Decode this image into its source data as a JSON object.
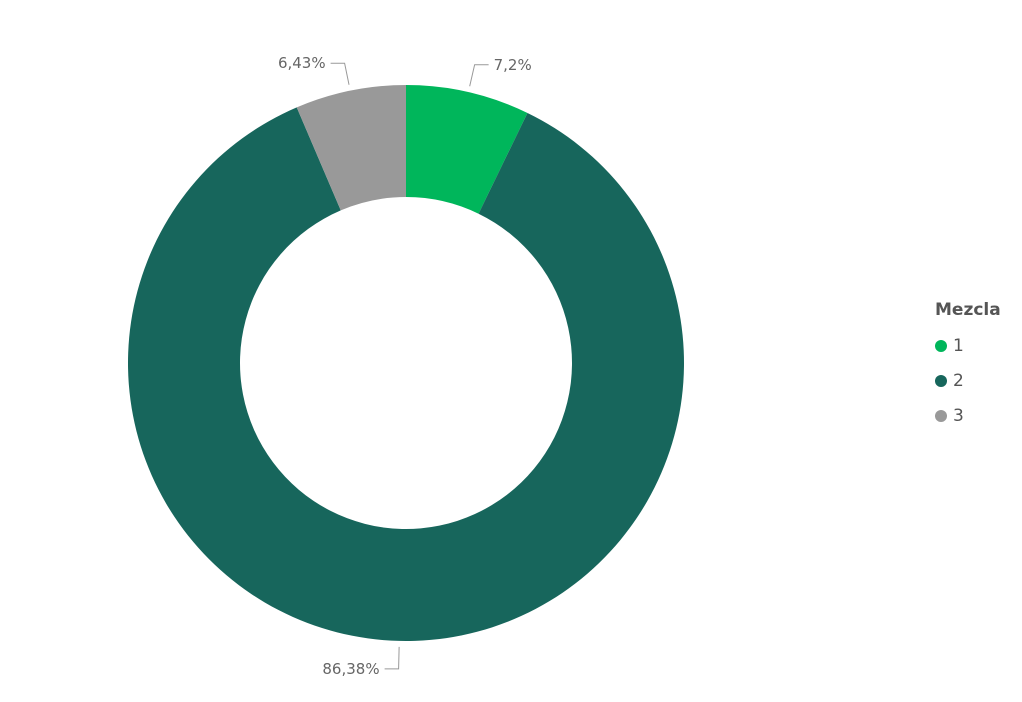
{
  "chart_data": {
    "type": "pie",
    "donut": true,
    "legend_title": "Mezcla",
    "legend_position": "right",
    "slices": [
      {
        "name": "1",
        "value": 7.2,
        "label": "7,2%",
        "color": "#00B65B"
      },
      {
        "name": "2",
        "value": 86.38,
        "label": "86,38%",
        "color": "#17665C"
      },
      {
        "name": "3",
        "value": 6.43,
        "label": "6,43%",
        "color": "#999999"
      }
    ]
  }
}
